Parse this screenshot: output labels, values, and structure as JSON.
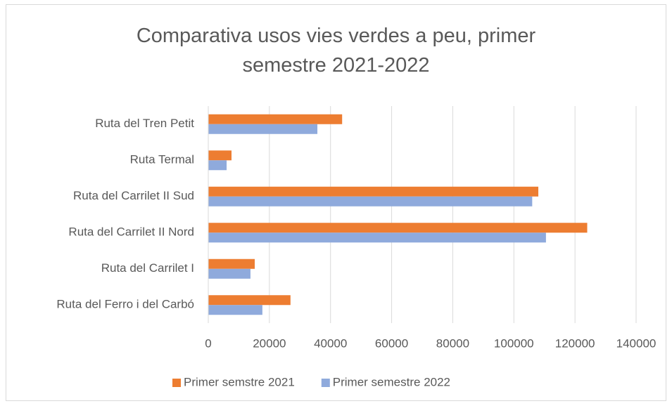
{
  "chart_data": {
    "type": "hbar",
    "title": "Comparativa usos vies verdes a peu, primer semestre 2021-2022",
    "categories": [
      "Ruta del Ferro i del Carbó",
      "Ruta del Carrilet I",
      "Ruta del Carrilet II Nord",
      "Ruta del Carrilet II Sud",
      "Ruta Termal",
      "Ruta del Tren Petit"
    ],
    "series": [
      {
        "name": "Primer semstre 2021",
        "color": "#ed7d31",
        "values": [
          26900,
          15200,
          124000,
          108000,
          7600,
          43800
        ]
      },
      {
        "name": "Primer semestre 2022",
        "color": "#8faadc",
        "values": [
          17700,
          13800,
          110500,
          106000,
          6000,
          35700
        ]
      }
    ],
    "xlim": [
      0,
      140000
    ],
    "xticks": [
      0,
      20000,
      40000,
      60000,
      80000,
      100000,
      120000,
      140000
    ],
    "grid": true,
    "legend": "bottom"
  }
}
